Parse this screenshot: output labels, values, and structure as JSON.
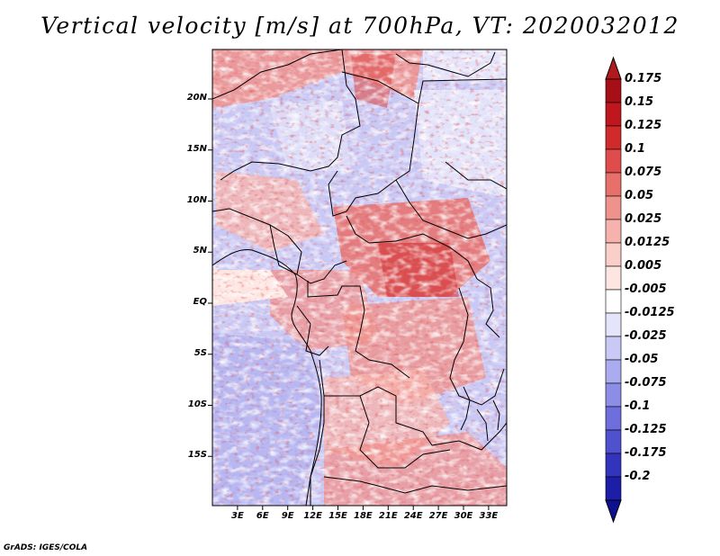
{
  "title": "Vertical velocity [m/s] at 700hPa, VT: 2020032012",
  "credit": "GrADS: IGES/COLA",
  "lat_labels": [
    {
      "label": "20N",
      "lat": 20
    },
    {
      "label": "15N",
      "lat": 15
    },
    {
      "label": "10N",
      "lat": 10
    },
    {
      "label": "5N",
      "lat": 5
    },
    {
      "label": "EQ",
      "lat": 0
    },
    {
      "label": "5S",
      "lat": -5
    },
    {
      "label": "10S",
      "lat": -10
    },
    {
      "label": "15S",
      "lat": -15
    }
  ],
  "lon_labels": [
    {
      "label": "3E",
      "lon": 3
    },
    {
      "label": "6E",
      "lon": 6
    },
    {
      "label": "9E",
      "lon": 9
    },
    {
      "label": "12E",
      "lon": 12
    },
    {
      "label": "15E",
      "lon": 15
    },
    {
      "label": "18E",
      "lon": 18
    },
    {
      "label": "21E",
      "lon": 21
    },
    {
      "label": "24E",
      "lon": 24
    },
    {
      "label": "27E",
      "lon": 27
    },
    {
      "label": "30E",
      "lon": 30
    },
    {
      "label": "33E",
      "lon": 33
    }
  ],
  "colorbar": [
    {
      "label": "0.175",
      "color": "#a50f15"
    },
    {
      "label": "0.15",
      "color": "#c0161d"
    },
    {
      "label": "0.125",
      "color": "#d12a2a"
    },
    {
      "label": "0.1",
      "color": "#de4c4b"
    },
    {
      "label": "0.075",
      "color": "#e8706b"
    },
    {
      "label": "0.05",
      "color": "#f0928c"
    },
    {
      "label": "0.025",
      "color": "#f6b3ad"
    },
    {
      "label": "0.0125",
      "color": "#facec9"
    },
    {
      "label": "0.005",
      "color": "#fde6e2"
    },
    {
      "label": "-0.005",
      "color": "#ffffff"
    },
    {
      "label": "-0.0125",
      "color": "#e4e4fb"
    },
    {
      "label": "-0.025",
      "color": "#c9c9f6"
    },
    {
      "label": "-0.05",
      "color": "#abacf0"
    },
    {
      "label": "-0.075",
      "color": "#8c8de6"
    },
    {
      "label": "-0.1",
      "color": "#6e6fdc"
    },
    {
      "label": "-0.125",
      "color": "#5051cf"
    },
    {
      "label": "-0.175",
      "color": "#3334be"
    },
    {
      "label": "-0.2",
      "color": "#1d1ea8"
    }
  ],
  "colorbar_top_color": "#b1191d",
  "colorbar_bottom_color": "#0f1090"
}
